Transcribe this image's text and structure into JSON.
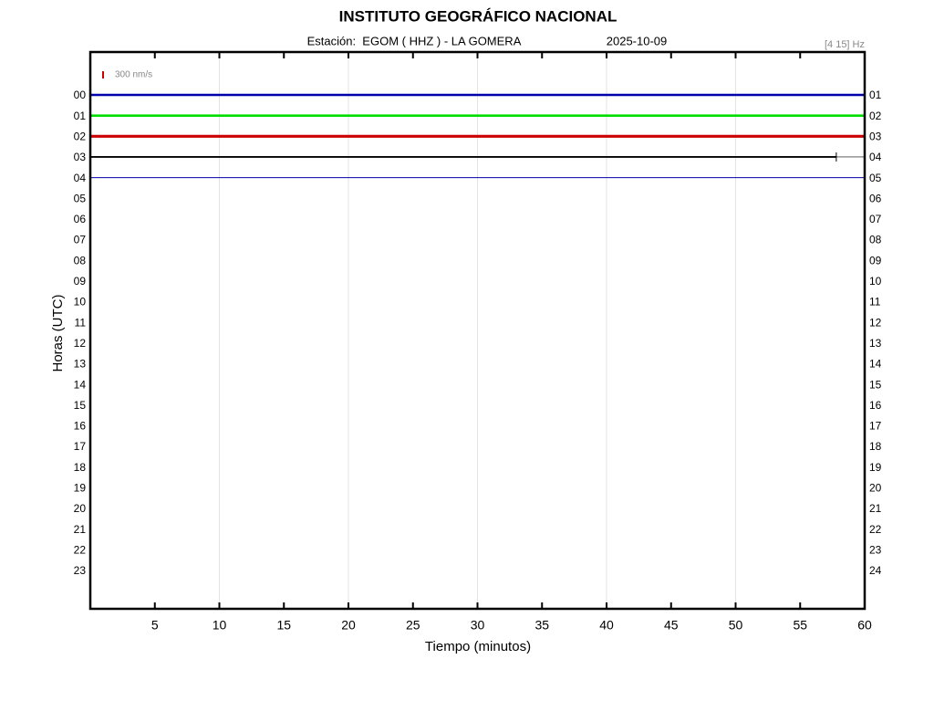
{
  "chart_data": {
    "type": "helicorder",
    "title": "INSTITUTO GEOGRÁFICO NACIONAL",
    "station": "Estación:  EGOM ( HHZ ) - LA GOMERA",
    "date": "2025-10-09",
    "filter": "[4 15] Hz",
    "scale_label": "300 nm/s",
    "xlabel": "Tiempo (minutos)",
    "ylabel": "Horas (UTC)",
    "xlim": [
      0,
      60
    ],
    "xticks": [
      5,
      10,
      15,
      20,
      25,
      30,
      35,
      40,
      45,
      50,
      55,
      60
    ],
    "xgrid": [
      10,
      20,
      30,
      40,
      50
    ],
    "categories": [
      "00",
      "01",
      "02",
      "03",
      "04",
      "05",
      "06",
      "07",
      "08",
      "09",
      "10",
      "11",
      "12",
      "13",
      "14",
      "15",
      "16",
      "17",
      "18",
      "19",
      "20",
      "21",
      "22",
      "23"
    ],
    "right_labels": [
      "01",
      "02",
      "03",
      "04",
      "05",
      "06",
      "07",
      "08",
      "09",
      "10",
      "11",
      "12",
      "13",
      "14",
      "15",
      "16",
      "17",
      "18",
      "19",
      "20",
      "21",
      "22",
      "23",
      "24"
    ],
    "traces": [
      {
        "color": "#0000aa",
        "x": [
          0,
          60
        ]
      },
      {
        "color": "#00dd00",
        "x": [
          0,
          60
        ]
      },
      {
        "color": "#cc0000",
        "x": [
          0,
          60
        ]
      },
      {
        "color": "#000000",
        "x": [
          0,
          57.8
        ]
      },
      {
        "color": "#0000aa",
        "x": [
          0,
          60
        ]
      }
    ]
  }
}
